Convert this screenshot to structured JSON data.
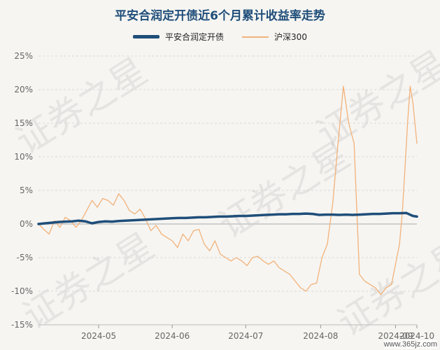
{
  "title": "平安合润定开债近6个月累计收益率走势",
  "legend": [
    {
      "name": "平安合润定开债",
      "color": "#1f4e79"
    },
    {
      "name": "沪深300",
      "color": "#f2b27a"
    }
  ],
  "watermark": "证券之星",
  "footer": "www.365jz.com",
  "chart_data": {
    "type": "line",
    "title": "平安合润定开债近6个月累计收益率走势",
    "xlabel": "",
    "ylabel": "",
    "ylim": [
      -15,
      25
    ],
    "yticks": [
      "25%",
      "20%",
      "15%",
      "10%",
      "5%",
      "0%",
      "-5%",
      "-10%",
      "-15%"
    ],
    "xtick_labels": [
      "2024-05",
      "2024-06",
      "2024-07",
      "2024-08",
      "2024-09",
      "2024-10"
    ],
    "grid": true,
    "legend_position": "top",
    "series": [
      {
        "name": "平安合润定开债",
        "color": "#1f4e79",
        "x": [
          0,
          5,
          10,
          15,
          20,
          25,
          30,
          35,
          40,
          45,
          50,
          55,
          60,
          65,
          70,
          75,
          80,
          85,
          90,
          95,
          100,
          105,
          110,
          115,
          120,
          125,
          130,
          135,
          140,
          145,
          150,
          155,
          160,
          165,
          170,
          175,
          180,
          185,
          190,
          195,
          200,
          205,
          210,
          215,
          220,
          225,
          230,
          235,
          240,
          245,
          250,
          255,
          260,
          265,
          270,
          275,
          280,
          283
        ],
        "y": [
          0.0,
          0.1,
          0.2,
          0.3,
          0.35,
          0.4,
          0.5,
          0.4,
          0.1,
          0.3,
          0.4,
          0.35,
          0.45,
          0.5,
          0.55,
          0.6,
          0.65,
          0.7,
          0.75,
          0.8,
          0.85,
          0.9,
          0.9,
          0.95,
          1.0,
          1.0,
          1.05,
          1.1,
          1.1,
          1.15,
          1.2,
          1.2,
          1.25,
          1.3,
          1.35,
          1.4,
          1.45,
          1.45,
          1.5,
          1.5,
          1.55,
          1.5,
          1.35,
          1.4,
          1.4,
          1.35,
          1.4,
          1.35,
          1.4,
          1.45,
          1.5,
          1.5,
          1.55,
          1.6,
          1.6,
          1.65,
          1.2,
          1.1
        ]
      },
      {
        "name": "沪深300",
        "color": "#f2b27a",
        "x": [
          0,
          4,
          8,
          12,
          16,
          20,
          24,
          28,
          32,
          36,
          40,
          44,
          48,
          52,
          56,
          60,
          64,
          68,
          72,
          76,
          80,
          84,
          88,
          92,
          96,
          100,
          104,
          108,
          112,
          116,
          120,
          124,
          128,
          132,
          136,
          140,
          144,
          148,
          152,
          156,
          160,
          164,
          168,
          172,
          176,
          180,
          184,
          188,
          192,
          196,
          200,
          204,
          208,
          212,
          216,
          220,
          224,
          228,
          232,
          236,
          240,
          244,
          248,
          252,
          256,
          260,
          264,
          268,
          270,
          272,
          274,
          276,
          278,
          280,
          283
        ],
        "y": [
          0.0,
          -0.8,
          -1.5,
          0.5,
          -0.5,
          1.0,
          0.5,
          -0.5,
          0.5,
          2.0,
          3.5,
          2.5,
          3.8,
          3.5,
          2.8,
          4.5,
          3.5,
          2.0,
          1.5,
          2.2,
          0.8,
          -1.0,
          -0.2,
          -1.5,
          -2.0,
          -2.5,
          -3.5,
          -1.5,
          -2.5,
          -1.0,
          -0.8,
          -3.0,
          -4.0,
          -2.5,
          -4.5,
          -5.0,
          -5.5,
          -5.0,
          -5.5,
          -6.2,
          -5.0,
          -4.8,
          -5.5,
          -6.0,
          -5.5,
          -6.5,
          -7.0,
          -7.5,
          -8.5,
          -9.5,
          -10.0,
          -9.0,
          -8.8,
          -5.0,
          -3.0,
          3.0,
          12.0,
          20.5,
          15.0,
          12.0,
          -7.5,
          -8.5,
          -9.0,
          -9.5,
          -10.5,
          -9.5,
          -9.0,
          -5.0,
          -3.0,
          1.5,
          8.0,
          15.0,
          20.5,
          18.0,
          12.0
        ]
      }
    ]
  }
}
